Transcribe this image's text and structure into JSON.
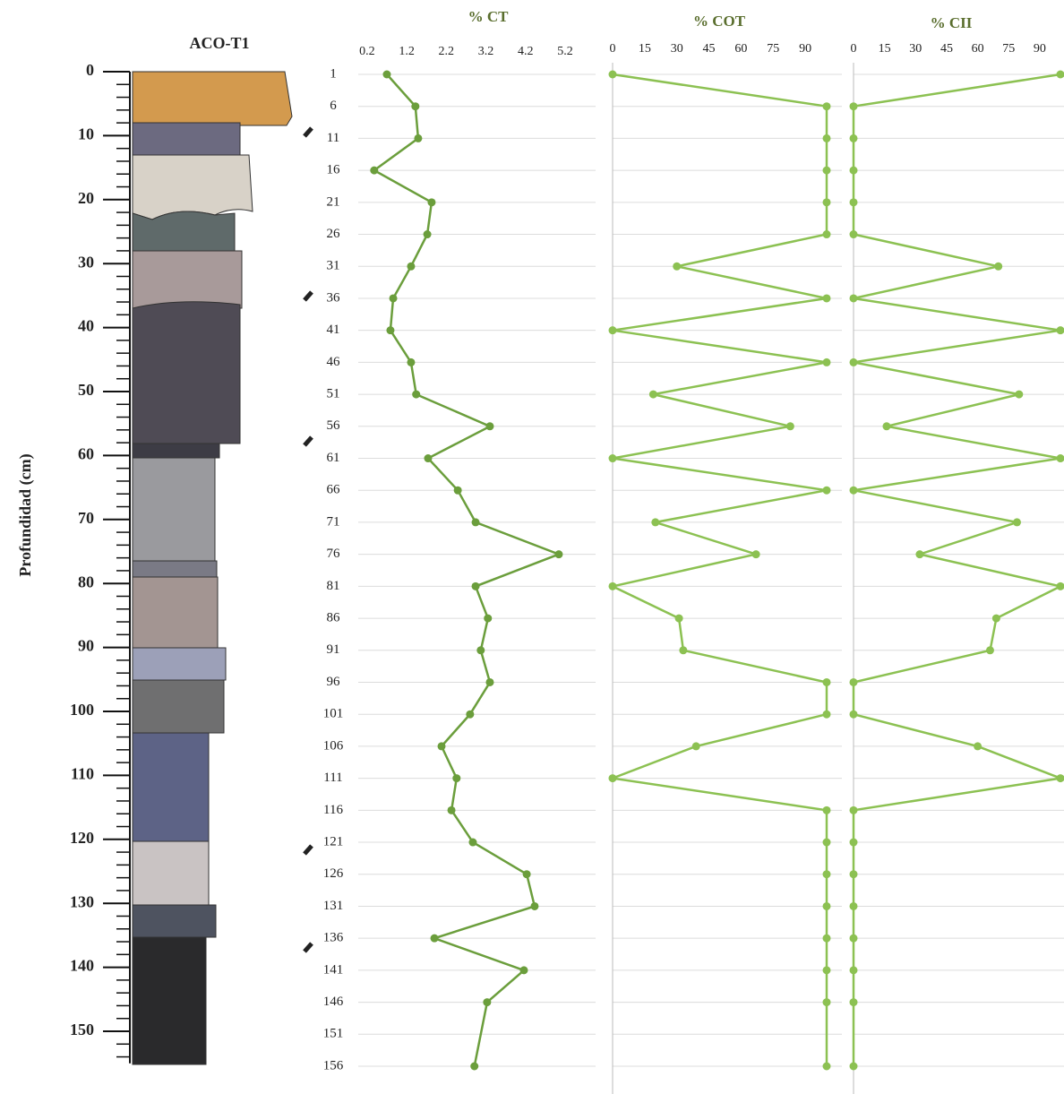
{
  "chart_data": [
    {
      "type": "column",
      "title": "ACO-T1",
      "ylabel": "Profundidad (cm)",
      "ylim": [
        0,
        155
      ],
      "yticks": [
        0,
        10,
        20,
        30,
        40,
        50,
        60,
        70,
        80,
        90,
        100,
        110,
        120,
        130,
        140,
        150
      ],
      "yminorticks": [
        2,
        4,
        6,
        8,
        12,
        14,
        16,
        18,
        22,
        24,
        26,
        28,
        32,
        34,
        36,
        38,
        42,
        44,
        46,
        48,
        52,
        54,
        56,
        58,
        62,
        64,
        66,
        68,
        72,
        74,
        76,
        78,
        82,
        84,
        86,
        88,
        92,
        94,
        96,
        98,
        102,
        104,
        106,
        108,
        112,
        114,
        116,
        118,
        122,
        124,
        126,
        128,
        132,
        134,
        136,
        138,
        142,
        144,
        146,
        148,
        152,
        154
      ]
    },
    {
      "type": "line",
      "title": "% CT",
      "color": "#6b9e3c",
      "grid": true,
      "xlim": [
        0,
        5.2
      ],
      "xticks": [
        0.2,
        1.2,
        2.2,
        3.2,
        4.2,
        5.2
      ],
      "ylim": [
        1,
        156
      ],
      "yticks": [
        1,
        6,
        11,
        16,
        21,
        26,
        31,
        36,
        41,
        46,
        51,
        56,
        61,
        66,
        71,
        76,
        81,
        86,
        91,
        96,
        101,
        106,
        111,
        116,
        121,
        126,
        131,
        136,
        141,
        146,
        151,
        156
      ],
      "y": [
        1,
        6,
        11,
        16,
        21,
        26,
        31,
        36,
        41,
        46,
        51,
        56,
        61,
        66,
        71,
        76,
        81,
        86,
        91,
        96,
        101,
        106,
        111,
        116,
        121,
        126,
        131,
        136,
        141,
        146,
        156
      ],
      "values": [
        0.7,
        1.42,
        1.49,
        0.38,
        1.83,
        1.72,
        1.31,
        0.86,
        0.79,
        1.31,
        1.44,
        3.3,
        1.74,
        2.49,
        2.94,
        5.04,
        2.94,
        3.25,
        3.07,
        3.3,
        2.8,
        2.08,
        2.46,
        2.33,
        2.87,
        4.23,
        4.43,
        1.9,
        4.16,
        3.23,
        2.91
      ]
    },
    {
      "type": "line",
      "title": "% COT",
      "color": "#8cc152",
      "grid": true,
      "xlim": [
        0,
        100
      ],
      "xticks": [
        0,
        15,
        30,
        45,
        60,
        75,
        90
      ],
      "ylim": [
        1,
        156
      ],
      "y": [
        1,
        6,
        11,
        16,
        21,
        26,
        31,
        36,
        41,
        46,
        51,
        56,
        61,
        66,
        71,
        76,
        81,
        86,
        91,
        96,
        101,
        106,
        111,
        116,
        121,
        126,
        131,
        136,
        141,
        146,
        156
      ],
      "values": [
        0,
        100,
        100,
        100,
        100,
        100,
        30,
        100,
        0,
        100,
        19,
        83,
        0,
        100,
        20,
        67,
        0,
        31,
        33,
        100,
        100,
        39,
        0,
        100,
        100,
        100,
        100,
        100,
        100,
        100,
        100
      ]
    },
    {
      "type": "line",
      "title": "% CII",
      "color": "#8cc152",
      "grid": true,
      "xlim": [
        0,
        100
      ],
      "xticks": [
        0,
        15,
        30,
        45,
        60,
        75,
        90
      ],
      "ylim": [
        1,
        156
      ],
      "y": [
        1,
        6,
        11,
        16,
        21,
        26,
        31,
        36,
        41,
        46,
        51,
        56,
        61,
        66,
        71,
        76,
        81,
        86,
        91,
        96,
        101,
        106,
        111,
        116,
        121,
        126,
        131,
        136,
        141,
        146,
        156
      ],
      "values": [
        100,
        0,
        0,
        0,
        0,
        0,
        70,
        0,
        100,
        0,
        80,
        16,
        100,
        0,
        79,
        32,
        100,
        69,
        66,
        0,
        0,
        60,
        100,
        0,
        0,
        0,
        0,
        0,
        0,
        0,
        0
      ]
    }
  ]
}
